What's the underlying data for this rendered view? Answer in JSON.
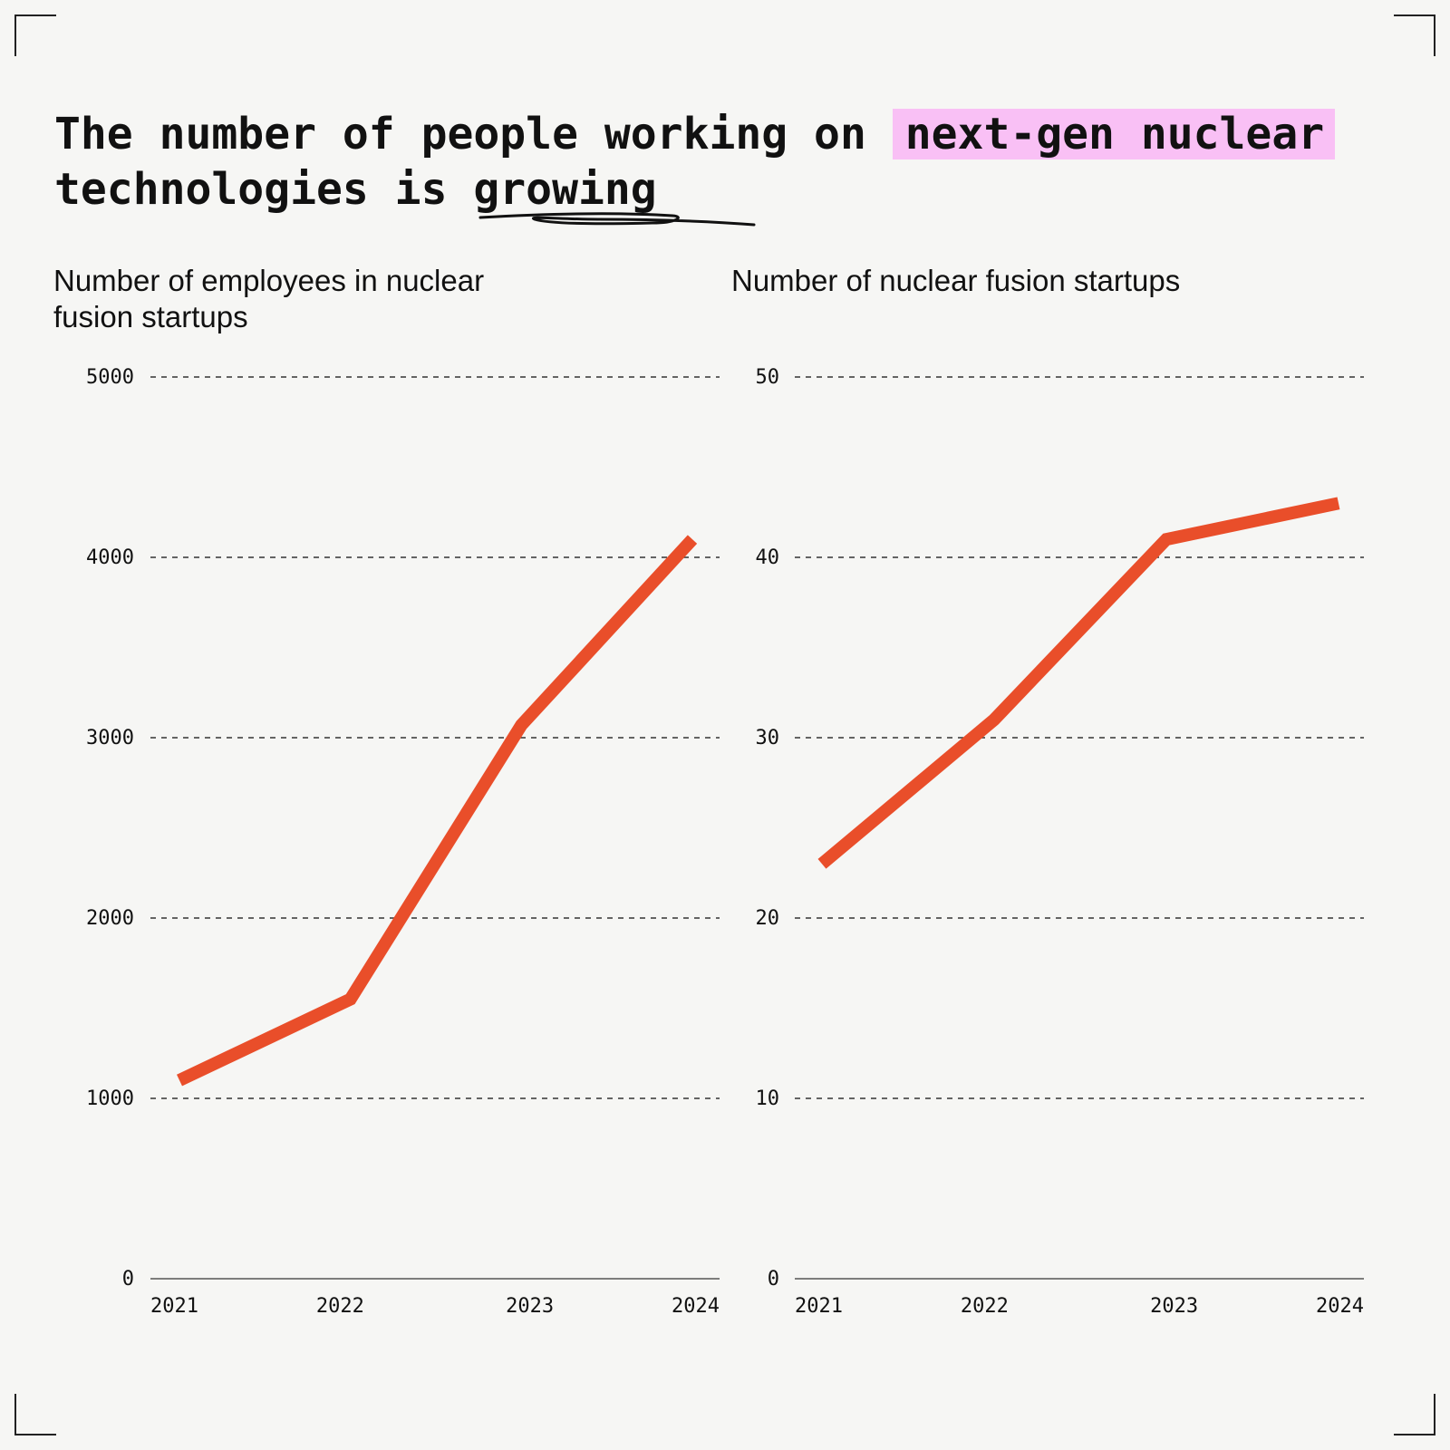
{
  "title": {
    "part1": "The number of people working on ",
    "highlight": "next-gen nuclear",
    "part2": "technologies is ",
    "underlined": "growing",
    "highlight_color": "#f9c0f5"
  },
  "line_color": "#e94e2a",
  "chart_data": [
    {
      "type": "line",
      "title": "Number of employees in nuclear fusion startups",
      "x": [
        "2021",
        "2022",
        "2023",
        "2024"
      ],
      "values": [
        1100,
        1550,
        3070,
        4100
      ],
      "ylim": [
        0,
        5000
      ],
      "yticks": [
        "0",
        "1000",
        "2000",
        "3000",
        "4000",
        "5000"
      ],
      "grid": true
    },
    {
      "type": "line",
      "title": "Number of nuclear fusion startups",
      "x": [
        "2021",
        "2022",
        "2023",
        "2024"
      ],
      "values": [
        23,
        31,
        41,
        43
      ],
      "ylim": [
        0,
        50
      ],
      "yticks": [
        "0",
        "10",
        "20",
        "30",
        "40",
        "50"
      ],
      "grid": true
    }
  ]
}
